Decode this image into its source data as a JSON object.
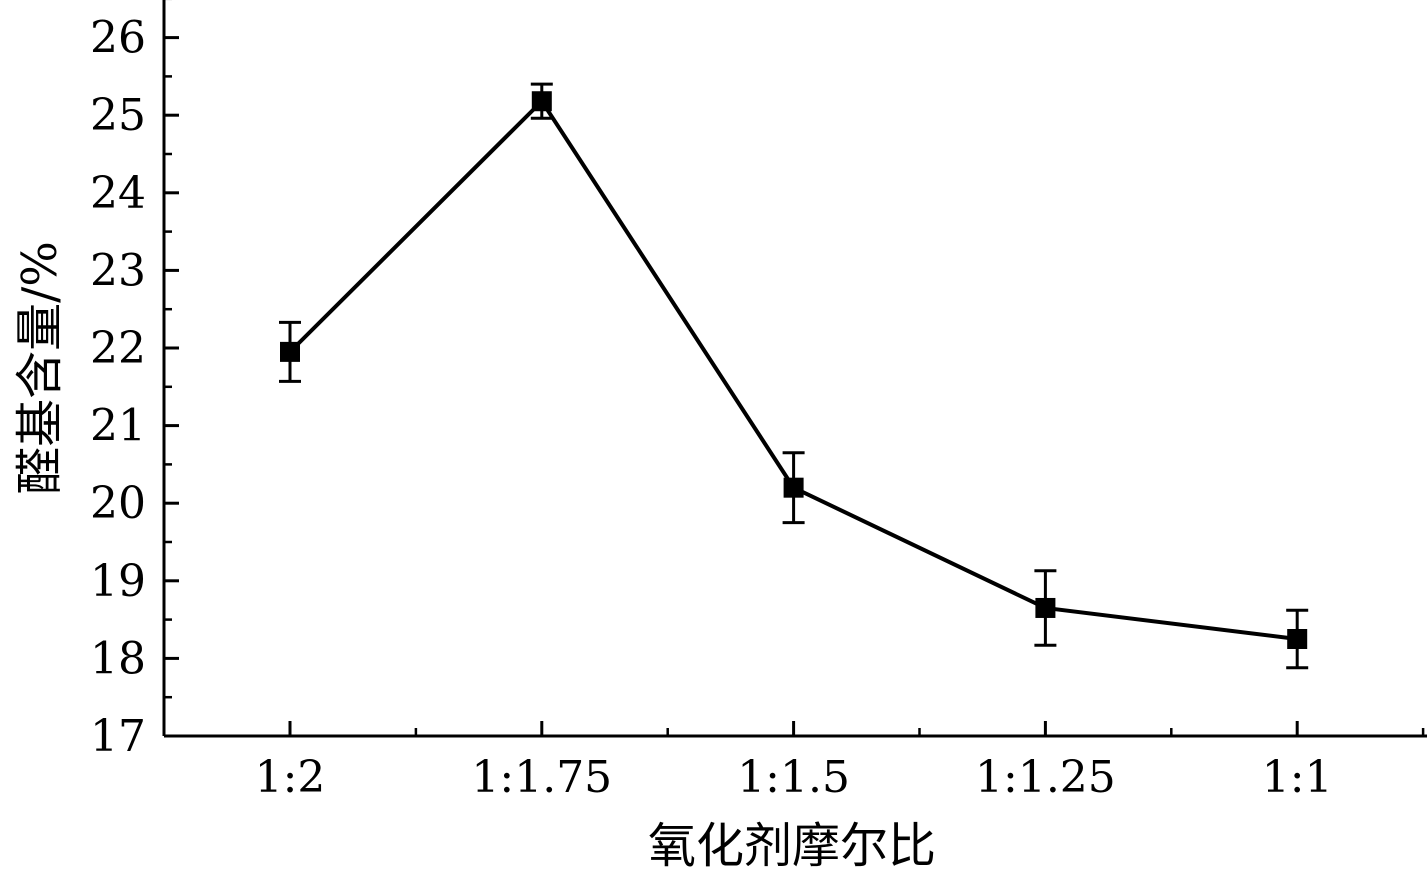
{
  "chart_data": {
    "type": "line",
    "title": "",
    "xlabel": "氧化剂摩尔比",
    "ylabel": "醛基含量/%",
    "categories": [
      "1:2",
      "1:1.75",
      "1:1.5",
      "1:1.25",
      "1:1"
    ],
    "series": [
      {
        "values": [
          21.95,
          25.18,
          20.2,
          18.65,
          18.25
        ],
        "errors": [
          0.38,
          0.22,
          0.45,
          0.48,
          0.37
        ]
      }
    ],
    "ylim": [
      17,
      26.5
    ],
    "yticks": [
      17,
      18,
      19,
      20,
      21,
      22,
      23,
      24,
      25,
      26
    ],
    "grid": false,
    "legend": "none",
    "color": "#000000",
    "marker": "square"
  }
}
